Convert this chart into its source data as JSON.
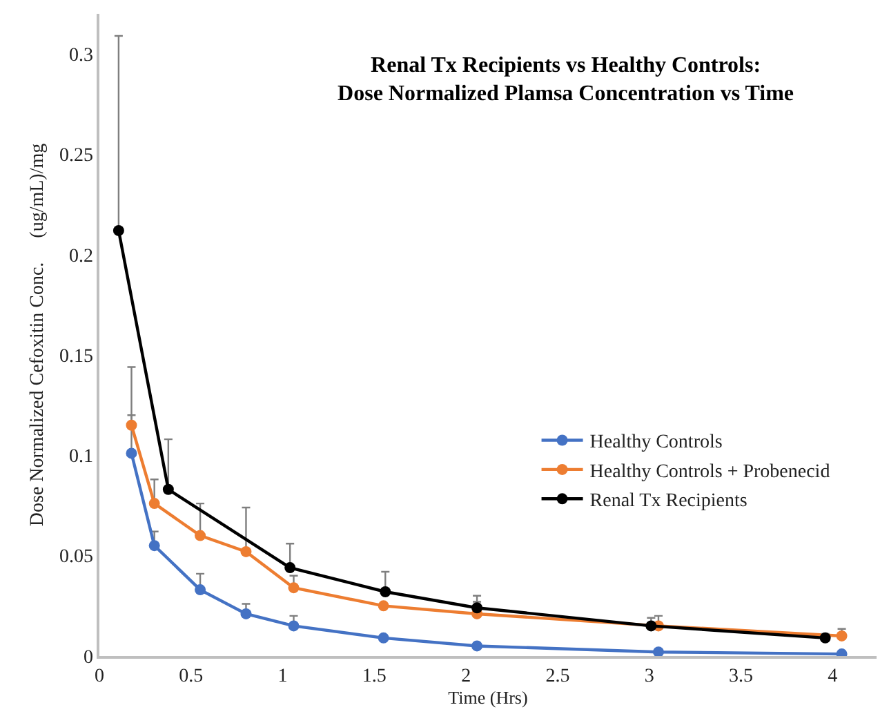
{
  "chart_data": {
    "type": "line",
    "title": "Renal Tx Recipients vs Healthy Controls:\nDose Normalized Plamsa Concentration vs Time",
    "xlabel": "Time (Hrs)",
    "ylabel": "Dose Normalized Cefoxitin Conc.     (ug/mL)/mg",
    "xlim": [
      0,
      4.24
    ],
    "xticks": [
      0,
      0.5,
      1,
      1.5,
      2,
      2.5,
      3,
      3.5,
      4
    ],
    "ylim": [
      0,
      0.32
    ],
    "yticks": [
      0,
      0.05,
      0.1,
      0.15,
      0.2,
      0.25,
      0.3
    ],
    "legend": "right",
    "marker": "circle",
    "line_style": "solid",
    "series": [
      {
        "name": "Healthy Controls",
        "color": "#4472c4",
        "x": [
          0.175,
          0.3,
          0.55,
          0.8,
          1.06,
          1.55,
          2.06,
          3.05,
          4.05
        ],
        "values": [
          0.101,
          0.055,
          0.033,
          0.021,
          0.015,
          0.009,
          0.005,
          0.002,
          0.001
        ],
        "errors": [
          [
            0.101,
            0.12
          ],
          [
            0.055,
            0.062
          ],
          [
            0.033,
            0.041
          ],
          [
            0.021,
            0.026
          ],
          [
            0.015,
            0.02
          ],
          null,
          null,
          null,
          null
        ]
      },
      {
        "name": "Healthy Controls + Probenecid",
        "color": "#ed7d31",
        "x": [
          0.175,
          0.3,
          0.55,
          0.8,
          1.06,
          1.55,
          2.06,
          3.05,
          4.05
        ],
        "values": [
          0.115,
          0.076,
          0.06,
          0.052,
          0.034,
          0.025,
          0.021,
          0.015,
          0.01
        ],
        "errors": [
          [
            0.115,
            0.144
          ],
          [
            0.076,
            0.088
          ],
          [
            0.06,
            0.076
          ],
          [
            0.052,
            0.074
          ],
          [
            0.034,
            0.04
          ],
          null,
          [
            0.021,
            0.027
          ],
          [
            0.015,
            0.02
          ],
          [
            0.01,
            0.0135
          ]
        ]
      },
      {
        "name": "Renal Tx Recipients",
        "color": "#000000",
        "x": [
          0.105,
          0.376,
          1.04,
          1.56,
          2.06,
          3.01,
          3.96
        ],
        "values": [
          0.212,
          0.083,
          0.044,
          0.032,
          0.024,
          0.015,
          0.009
        ],
        "errors": [
          [
            0.212,
            0.309
          ],
          [
            0.083,
            0.108
          ],
          [
            0.044,
            0.056
          ],
          [
            0.032,
            0.042
          ],
          [
            0.024,
            0.03
          ],
          [
            0.015,
            0.019
          ],
          [
            0.009,
            0.011
          ]
        ]
      }
    ]
  }
}
